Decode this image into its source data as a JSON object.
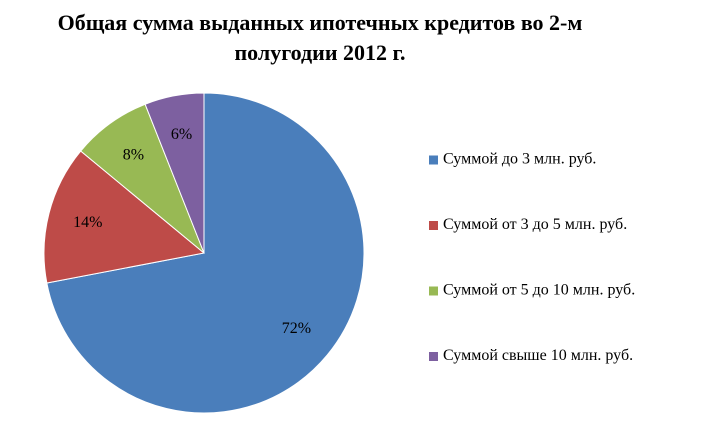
{
  "chart_data": {
    "type": "pie",
    "title": "Общая сумма выданных ипотечных кредитов во 2-м полугодии 2012 г.",
    "categories": [
      "Суммой до 3 млн. руб.",
      "Суммой от 3 до 5 млн. руб.",
      "Суммой от 5 до 10 млн. руб.",
      "Суммой свыше 10 млн. руб."
    ],
    "values": [
      72,
      14,
      8,
      6
    ],
    "value_labels": [
      "72%",
      "14%",
      "8%",
      "6%"
    ],
    "colors": [
      "#4a7ebb",
      "#be4b48",
      "#98b954",
      "#7d60a0"
    ],
    "legend": "right"
  }
}
